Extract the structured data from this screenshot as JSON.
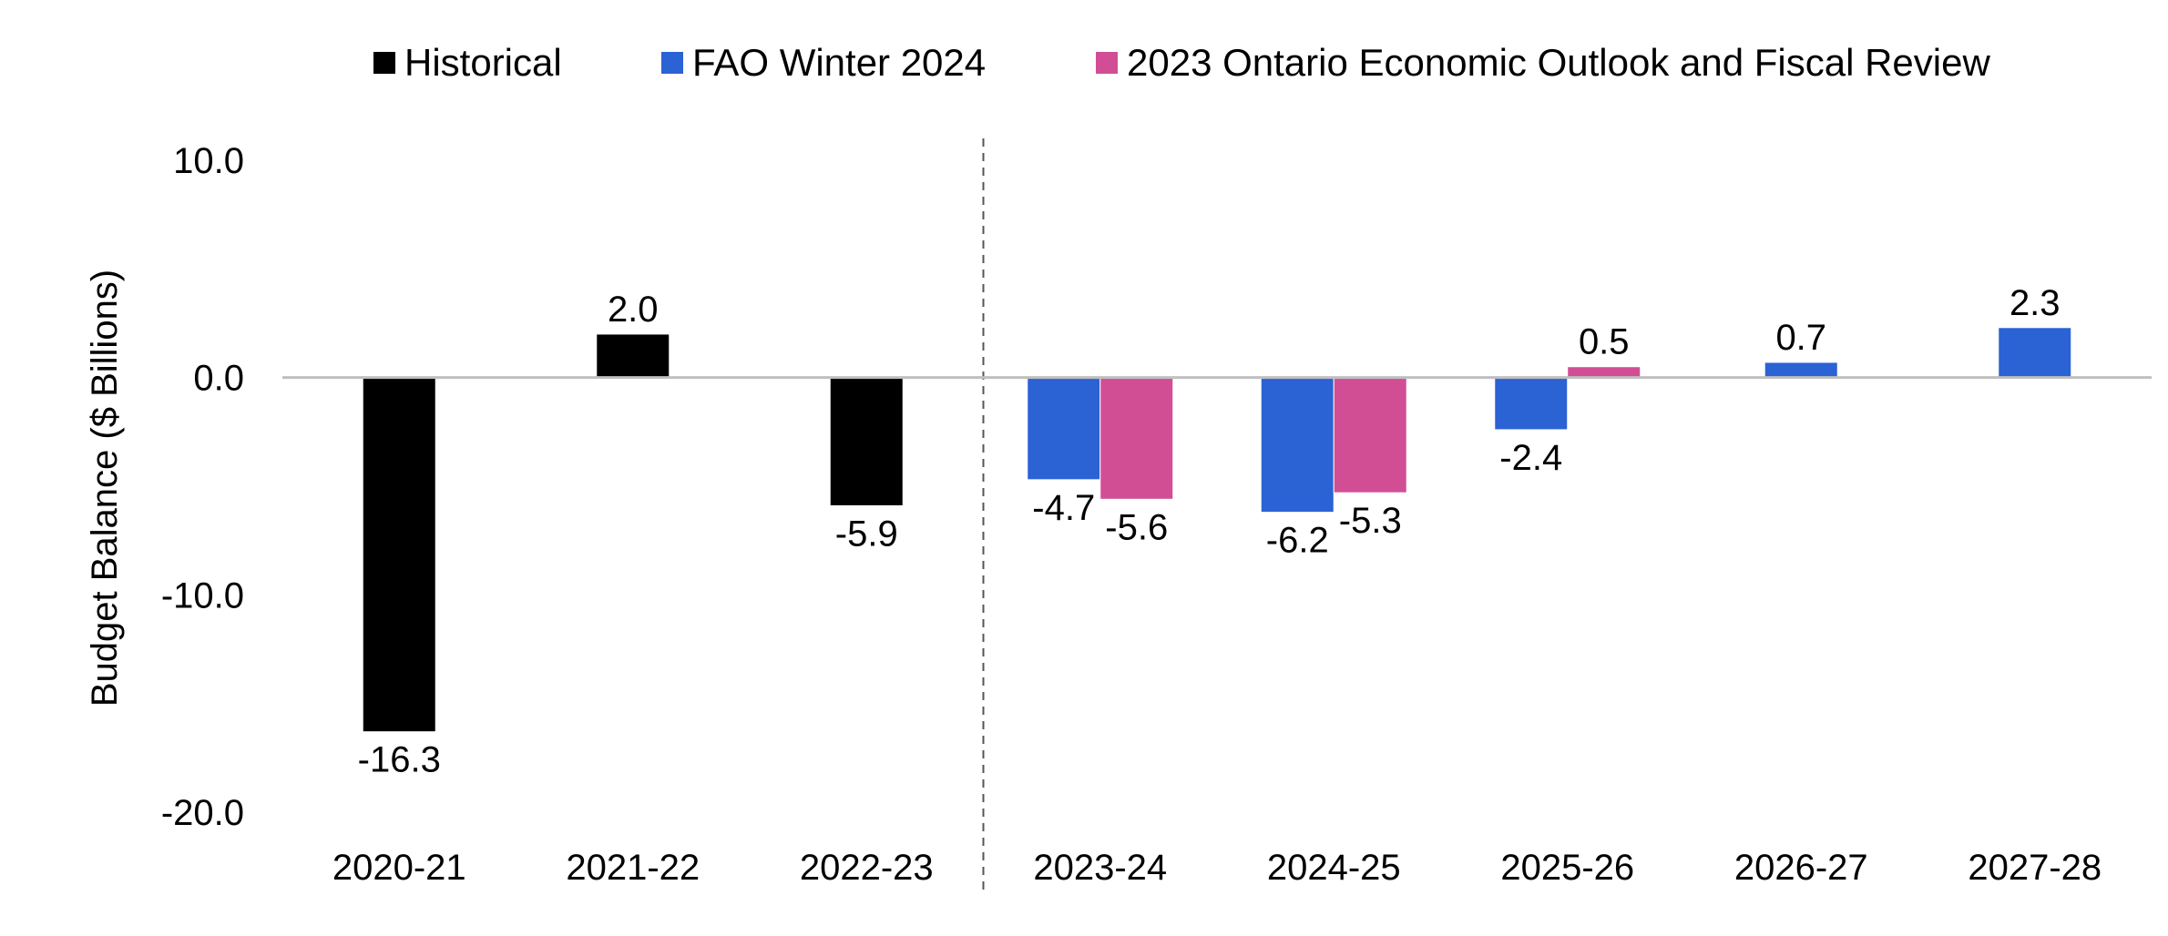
{
  "chart_data": {
    "type": "bar",
    "title": "",
    "xlabel": "",
    "ylabel": "Budget Balance ($ Billions)",
    "ylim": [
      -20,
      10
    ],
    "yticks": [
      10,
      0,
      -10,
      -20
    ],
    "ytick_labels": [
      "10.0",
      "0.0",
      "-10.0",
      "-20.0"
    ],
    "categories": [
      "2020-21",
      "2021-22",
      "2022-23",
      "2023-24",
      "2024-25",
      "2025-26",
      "2026-27",
      "2027-28"
    ],
    "divider_after_category": 2,
    "legend_position": "top",
    "grid": false,
    "series": [
      {
        "name": "Historical",
        "color": "#000000",
        "values": [
          -16.3,
          2.0,
          -5.9,
          null,
          null,
          null,
          null,
          null
        ],
        "labels": [
          "-16.3",
          "2.0",
          "-5.9",
          null,
          null,
          null,
          null,
          null
        ]
      },
      {
        "name": "FAO Winter 2024",
        "color": "#2B62D4",
        "values": [
          null,
          null,
          null,
          -4.7,
          -6.2,
          -2.4,
          0.7,
          2.3
        ],
        "labels": [
          null,
          null,
          null,
          "-4.7",
          "-6.2",
          "-2.4",
          "0.7",
          "2.3"
        ]
      },
      {
        "name": "2023 Ontario Economic Outlook and Fiscal Review",
        "color": "#D14E95",
        "values": [
          null,
          null,
          null,
          -5.6,
          -5.3,
          0.5,
          null,
          null
        ],
        "labels": [
          null,
          null,
          null,
          "-5.6",
          "-5.3",
          "0.5",
          null,
          null
        ]
      }
    ]
  }
}
